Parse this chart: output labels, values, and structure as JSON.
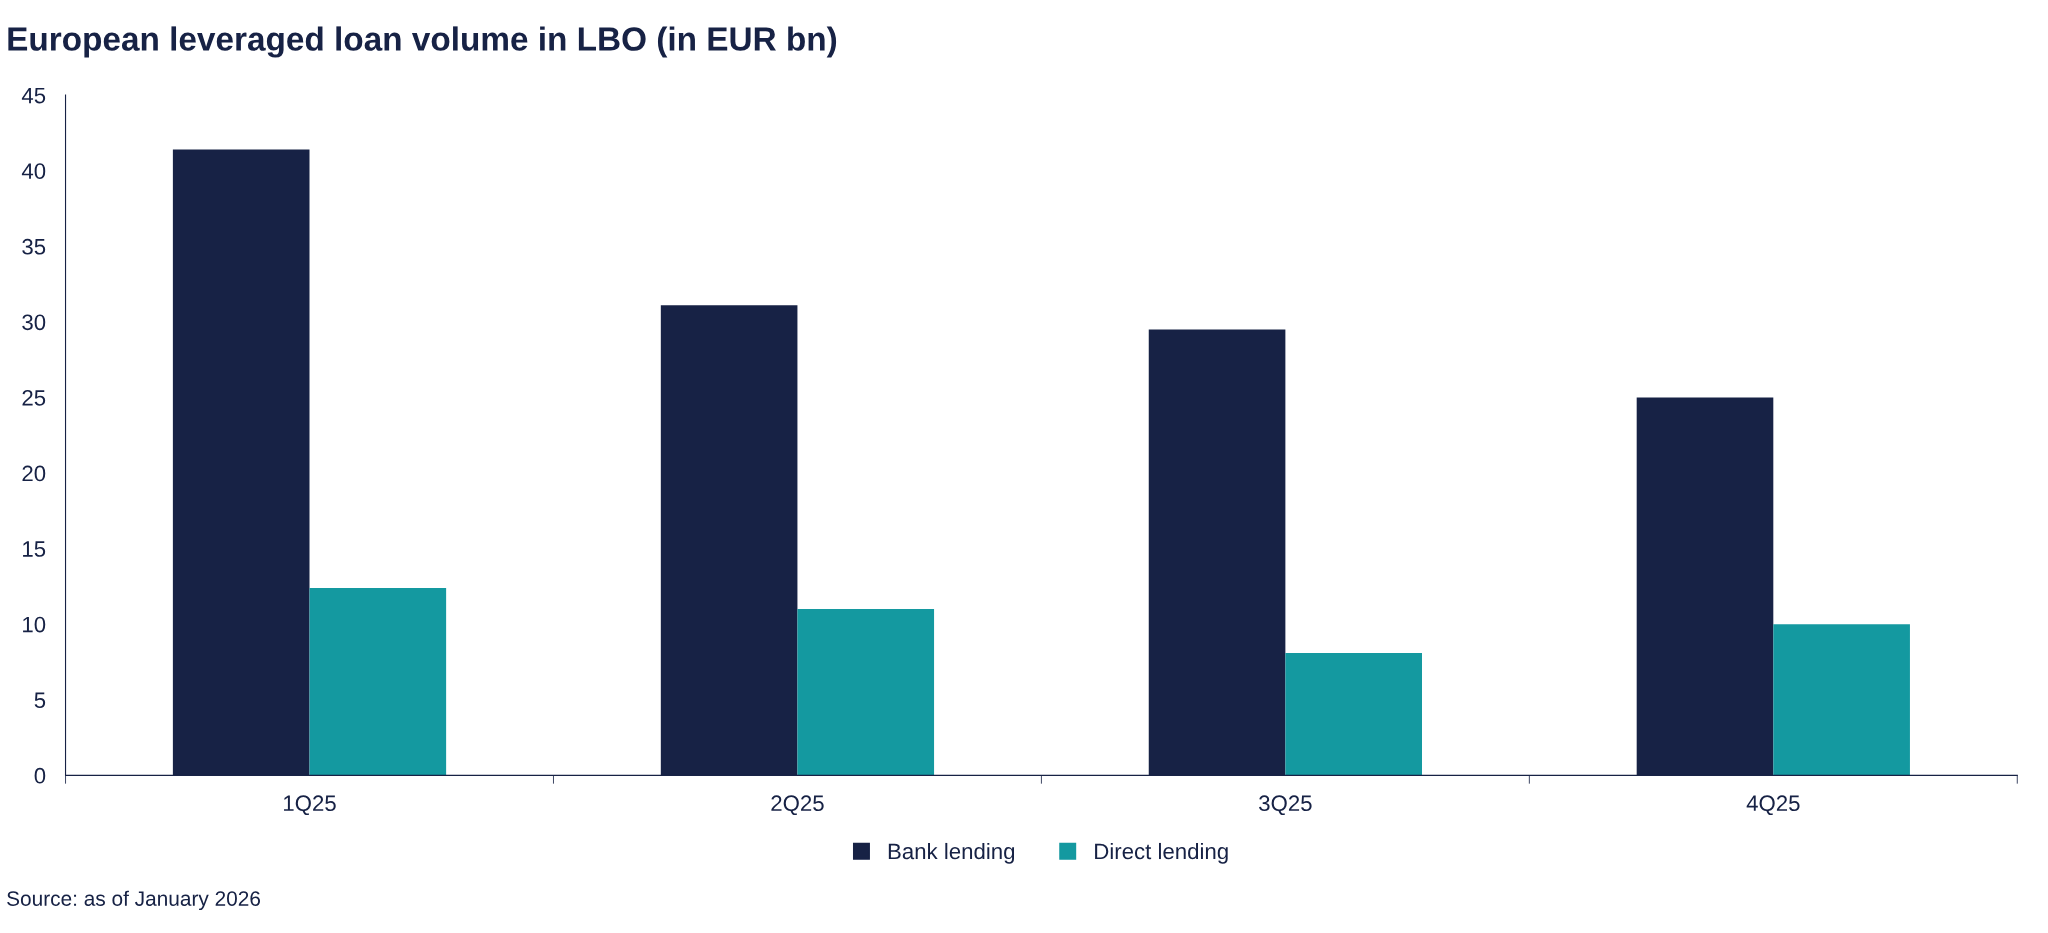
{
  "chart_data": {
    "type": "bar",
    "title": "European leveraged loan volume in LBO (in EUR bn)",
    "categories": [
      "1Q25",
      "2Q25",
      "3Q25",
      "4Q25"
    ],
    "series": [
      {
        "name": "Bank lending",
        "color": "#172245",
        "values": [
          41.4,
          31.1,
          29.5,
          25.0
        ]
      },
      {
        "name": "Direct lending",
        "color": "#1499a0",
        "values": [
          12.4,
          11.0,
          8.1,
          10.0
        ]
      }
    ],
    "ylim": [
      0,
      45
    ],
    "yticks": [
      0,
      5,
      10,
      15,
      20,
      25,
      30,
      35,
      40,
      45
    ],
    "legend": "bottom",
    "grid": false,
    "annotations": [
      "Source: as of January 2026"
    ]
  }
}
